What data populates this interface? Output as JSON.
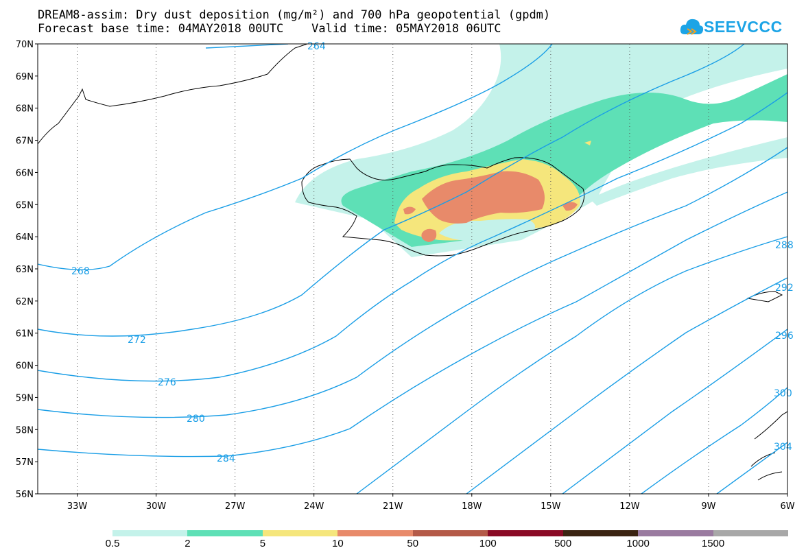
{
  "title": {
    "line1": "DREAM8-assim: Dry dust deposition (mg/m²) and 700 hPa geopotential (gpdm)",
    "line2": "Forecast base time: 04MAY2018 00UTC    Valid time: 05MAY2018 06UTC"
  },
  "logo": {
    "text": "SEEVCCC",
    "icon": "cloud-icon",
    "color": "#1ca4e6"
  },
  "map": {
    "lon_range": [
      -34.5,
      -6
    ],
    "lat_range": [
      56,
      70
    ],
    "lat_labels": [
      "70N",
      "69N",
      "68N",
      "67N",
      "66N",
      "65N",
      "64N",
      "63N",
      "62N",
      "61N",
      "60N",
      "59N",
      "58N",
      "57N",
      "56N"
    ],
    "lon_labels": [
      "33W",
      "30W",
      "27W",
      "24W",
      "21W",
      "18W",
      "15W",
      "12W",
      "9W",
      "6W"
    ],
    "contour_color": "#1a9ee6",
    "contour_labels": [
      "264",
      "268",
      "272",
      "276",
      "280",
      "284",
      "288",
      "292",
      "296",
      "300",
      "304"
    ],
    "grid": "dotted",
    "region": "Iceland and North Atlantic"
  },
  "colorbar": {
    "colors": [
      "#c4f2ea",
      "#5ee0b6",
      "#f5e67c",
      "#e88a6a",
      "#b45a48",
      "#8a0a25",
      "#3b2412",
      "#9a7ba0",
      "#a8a8a8"
    ],
    "labels": [
      "0.5",
      "2",
      "5",
      "10",
      "50",
      "100",
      "500",
      "1000",
      "1500"
    ]
  }
}
